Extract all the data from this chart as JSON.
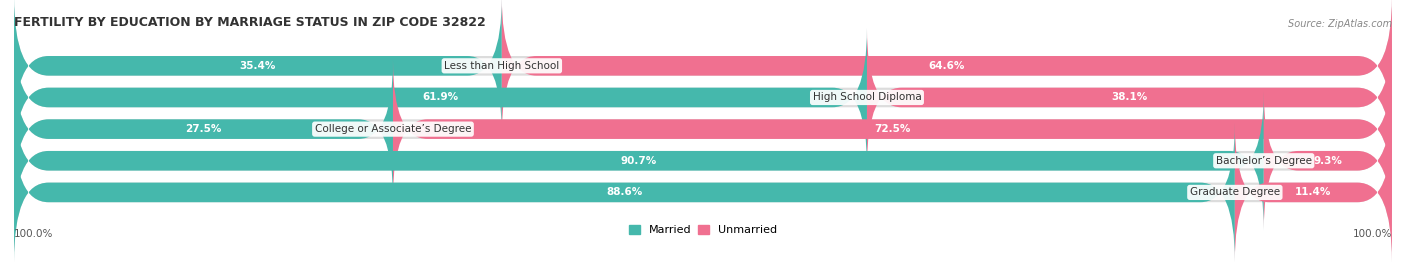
{
  "title": "FERTILITY BY EDUCATION BY MARRIAGE STATUS IN ZIP CODE 32822",
  "source": "Source: ZipAtlas.com",
  "categories": [
    "Less than High School",
    "High School Diploma",
    "College or Associate’s Degree",
    "Bachelor’s Degree",
    "Graduate Degree"
  ],
  "married": [
    35.4,
    61.9,
    27.5,
    90.7,
    88.6
  ],
  "unmarried": [
    64.6,
    38.1,
    72.5,
    9.3,
    11.4
  ],
  "married_color": "#45B8AC",
  "unmarried_color": "#F07090",
  "bar_bg_color": "#DCDCDC",
  "figsize": [
    14.06,
    2.69
  ],
  "dpi": 100,
  "title_fontsize": 9,
  "label_fontsize": 7.5,
  "pct_fontsize": 7.5,
  "source_fontsize": 7,
  "legend_fontsize": 8
}
